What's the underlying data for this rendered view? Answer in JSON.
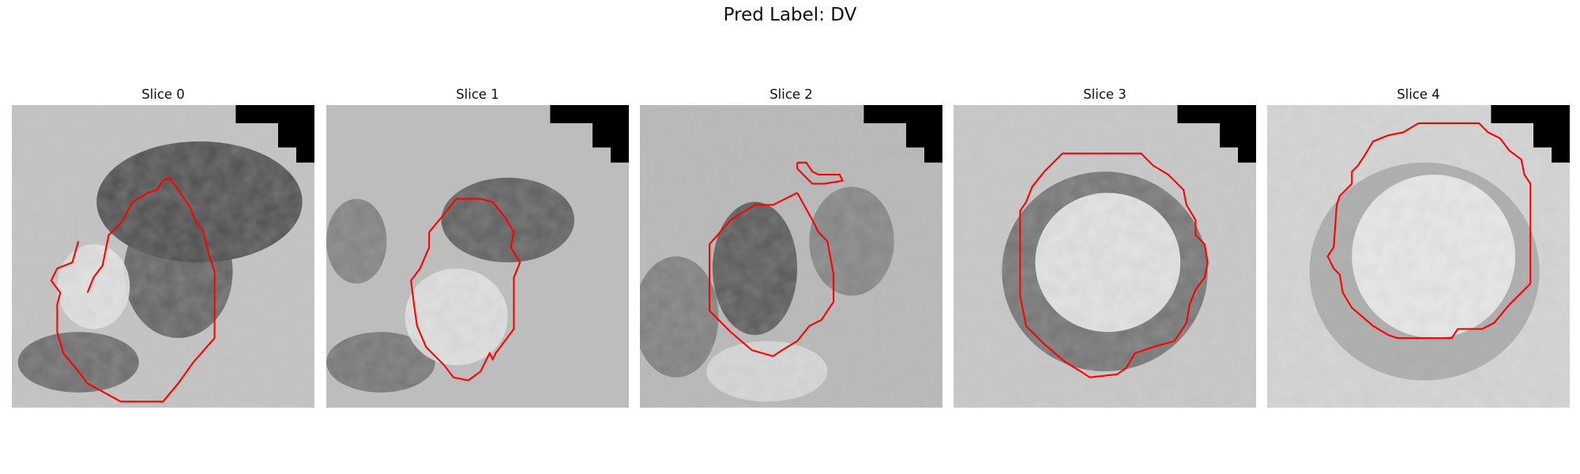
{
  "figure": {
    "title": "Pred Label: DV"
  },
  "panels": [
    {
      "title": "Slice 0"
    },
    {
      "title": "Slice 1"
    },
    {
      "title": "Slice 2"
    },
    {
      "title": "Slice 3"
    },
    {
      "title": "Slice 4"
    }
  ],
  "colors": {
    "contour": "#ff0000",
    "mask": "#000000"
  }
}
